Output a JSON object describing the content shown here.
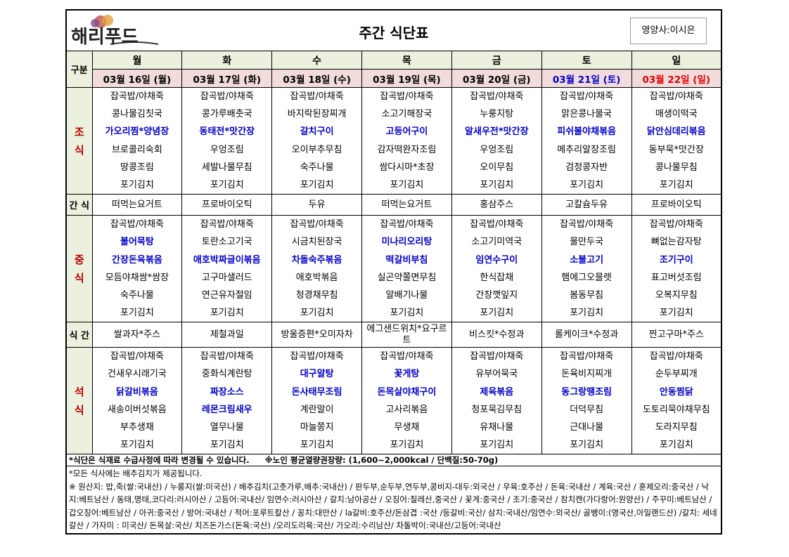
{
  "header": {
    "logo": "해리푸드",
    "title": "주간 식단표",
    "dietitian": "영양사:이시은"
  },
  "corner": "구분",
  "days": [
    {
      "name": "월",
      "date": "03월 16일 (월)"
    },
    {
      "name": "화",
      "date": "03월 17일 (화)"
    },
    {
      "name": "수",
      "date": "03월 18일 (수)"
    },
    {
      "name": "목",
      "date": "03월 19일 (목)"
    },
    {
      "name": "금",
      "date": "03월 20일 (금)"
    },
    {
      "name": "토",
      "date": "03월 21일 (토)"
    },
    {
      "name": "일",
      "date": "03월 22일 (일)"
    }
  ],
  "sections": [
    {
      "label": "조 식",
      "menus": [
        [
          "잡곡밥/야채죽",
          "콩나물김칫국",
          "가오리찜*양념장",
          "브로콜리숙회",
          "땅콩조림",
          "포기김치"
        ],
        [
          "잡곡밥/야채죽",
          "콩가루배춧국",
          "동태전*맛간장",
          "우엉조림",
          "세발나물무침",
          "포기김치"
        ],
        [
          "잡곡밥/야채죽",
          "바지락된장찌개",
          "갈치구이",
          "오이부추무침",
          "숙주나물",
          "포기김치"
        ],
        [
          "잡곡밥/야채죽",
          "소고기해장국",
          "고등어구이",
          "감자떡완자조림",
          "쌈다시마*초장",
          "포기김치"
        ],
        [
          "잡곡밥/야채죽",
          "누룽지탕",
          "알새우전*맛간장",
          "우엉조림",
          "오이무침",
          "포기김치"
        ],
        [
          "잡곡밥/야채죽",
          "맑은콩나물국",
          "피쉬볼야채볶음",
          "메추리알장조림",
          "검정콩자반",
          "포기김치"
        ],
        [
          "잡곡밥/야채죽",
          "매생이떡국",
          "닭안심데리볶음",
          "동부묵*맛간장",
          "콩나물무침",
          "포기김치"
        ]
      ]
    },
    {
      "label": "간 식",
      "menus": [
        [
          "떠먹는요거트"
        ],
        [
          "프로바이오틱"
        ],
        [
          "두유"
        ],
        [
          "떠먹는요거트"
        ],
        [
          "홍삼주스"
        ],
        [
          "고칼슘두유"
        ],
        [
          "프로바이오틱"
        ]
      ]
    },
    {
      "label": "중 식",
      "menus": [
        [
          "잡곡밥/야채죽",
          "불어묵탕",
          "간장돈육볶음",
          "모듬야채쌈*쌈장",
          "숙주나물",
          "포기김치"
        ],
        [
          "잡곡밥/야채죽",
          "토란소고기국",
          "애호박짜글이볶음",
          "고구마샐러드",
          "연근유자절임",
          "포기김치"
        ],
        [
          "잡곡밥/야채죽",
          "시금치된장국",
          "차돌숙주볶음",
          "애호박볶음",
          "청경채무침",
          "포기김치"
        ],
        [
          "잡곡밥/야채죽",
          "미나리오리탕",
          "떡갈비부침",
          "실곤약쫄면무침",
          "알배기나물",
          "포기김치"
        ],
        [
          "잡곡밥/야채죽",
          "소고기미역국",
          "임연수구이",
          "한식잡채",
          "간장깻잎지",
          "포기김치"
        ],
        [
          "잡곡밥/야채죽",
          "물만두국",
          "소불고기",
          "햄에그오믈렛",
          "봄동무침",
          "포기김치"
        ],
        [
          "잡곡밥/야채죽",
          "뼈없는감자탕",
          "조기구이",
          "표고버섯조림",
          "오복지무침",
          "포기김치"
        ]
      ]
    },
    {
      "label": "식 간",
      "menus": [
        [
          "쌀과자*주스"
        ],
        [
          "제철과일"
        ],
        [
          "방울증편*오미자차"
        ],
        [
          "에그샌드위치*요구르트"
        ],
        [
          "비스킷*수정과"
        ],
        [
          "롤케이크*수정과"
        ],
        [
          "찐고구마*주스"
        ]
      ]
    },
    {
      "label": "석 식",
      "menus": [
        [
          "잡곡밥/야채죽",
          "건새우시래기국",
          "닭갈비볶음",
          "새송이버섯볶음",
          "부추생채",
          "포기김치"
        ],
        [
          "잡곡밥/야채죽",
          "중화식계란탕",
          "짜장소스",
          "레몬크림새우",
          "열무나물",
          "포기김치"
        ],
        [
          "잡곡밥/야채죽",
          "대구알탕",
          "돈사태무조림",
          "계란말이",
          "마늘쫑지",
          "포기김치"
        ],
        [
          "잡곡밥/야채죽",
          "꽃게탕",
          "돈목살야채구이",
          "고사리볶음",
          "무생채",
          "포기김치"
        ],
        [
          "잡곡밥/야채죽",
          "유부어묵국",
          "제육볶음",
          "청포묵김무침",
          "유채나물",
          "포기김치"
        ],
        [
          "잡곡밥/야채죽",
          "돈육비지찌개",
          "동그랑땡조림",
          "더덕무침",
          "근대나물",
          "포기김치"
        ],
        [
          "잡곡밥/야채죽",
          "순두부찌개",
          "안동찜닭",
          "도토리묵야채무침",
          "도라지무침",
          "포기김치"
        ]
      ]
    }
  ],
  "notes": {
    "change": "*식단은 식재료 수급사정에 따라 변경될 수 있습니다.",
    "calorie": "※노인 평균열량권장량: (1,600~2,000kcal / 단백질:50-70g)",
    "kimchi": "*모든 식사에는 배추김치가 제공됩니다.",
    "origin": "※ 원산지: 밥,죽(쌀:국내산) / 누룽지(쌀:미국산) / 배추김치(고춧가루,배추:국내산) / 판두부,순두부,연두부,콩비지-대두:외국산 / 우육:호주산 / 돈육:국내산 / 계육:국산 / 훈제오리:중국산 / 낙지:베트남산 / 동태,명태,코다리:러시아산 / 고등어:국내산/ 임연수:러시아산 / 갈치:남아공산 / 오징어:칠레산,중국산 / 꽃게:중국산 / 조기:중국산 / 참치캔(가다랑어:원양산) / 주꾸미:베트남산 / 갑오징어:베트남산 / 아귀:중국산 / 방어:국내산 / 적어:포루트칼산 / 꽁치:대만산 / la갈비:호주산/돈삼겹 :국산 /등갈비:국산/ 삼치:국내산/임연수:외국산/ 골뱅이:(영국산,아일랜드산) /갈치: 세네갈산 / 가자미 : 미국산/ 돈목살:국산/ 치즈돈가스(돈육:국산) /오리도리육:국산/ 가오리:수리남산/ 차돌박이:국내산/고등어:국내산"
  }
}
